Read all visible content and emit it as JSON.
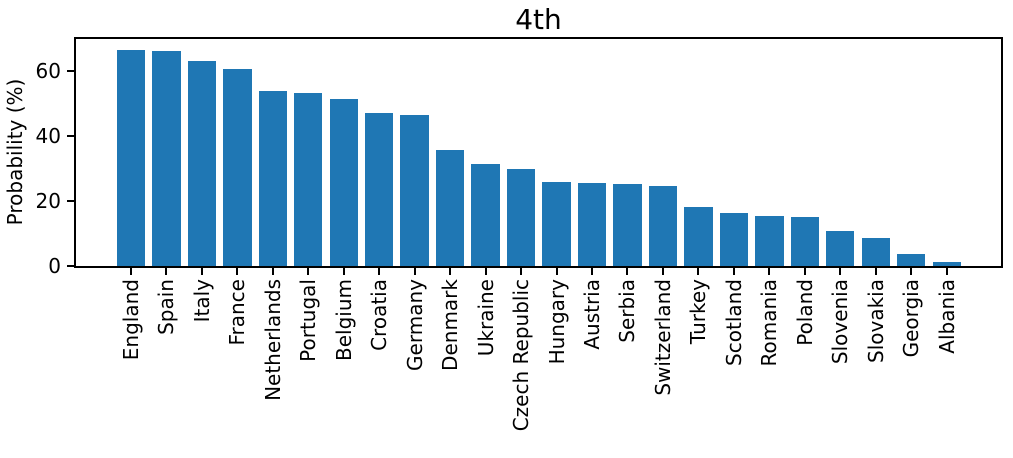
{
  "chart_data": {
    "type": "bar",
    "title": "4th",
    "ylabel": "Probability (%)",
    "xlabel": "",
    "categories": [
      "England",
      "Spain",
      "Italy",
      "France",
      "Netherlands",
      "Portugal",
      "Belgium",
      "Croatia",
      "Germany",
      "Denmark",
      "Ukraine",
      "Czech Republic",
      "Hungary",
      "Austria",
      "Serbia",
      "Switzerland",
      "Turkey",
      "Scotland",
      "Romania",
      "Poland",
      "Slovenia",
      "Slovakia",
      "Georgia",
      "Albania"
    ],
    "values": [
      66.5,
      66.2,
      63.3,
      60.9,
      54.0,
      53.3,
      51.6,
      47.2,
      46.6,
      35.9,
      31.6,
      29.8,
      26.0,
      25.7,
      25.4,
      24.7,
      18.1,
      16.3,
      15.4,
      15.2,
      10.7,
      8.7,
      3.8,
      1.2
    ],
    "yticks": [
      0,
      20,
      40,
      60
    ],
    "ylim": [
      0,
      70
    ],
    "x_tick_rotation_deg": 90,
    "grid": false,
    "bar_color": "#1f77b4",
    "axis_color": "#000000",
    "background_color": "#ffffff"
  }
}
